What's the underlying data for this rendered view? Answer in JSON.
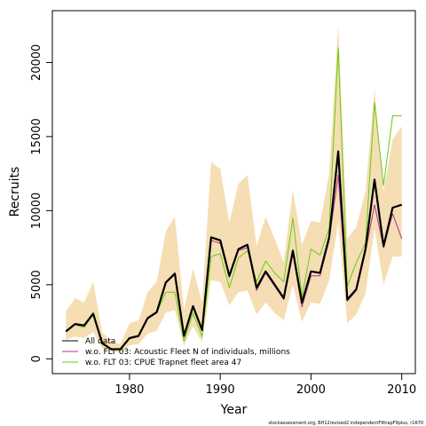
{
  "chart_data": {
    "type": "line",
    "xlabel": "Year",
    "ylabel": "Recruits",
    "xlim": [
      1971.5,
      2011.5
    ],
    "ylim": [
      -1000,
      23500
    ],
    "x_ticks": [
      1980,
      1990,
      2000,
      2010
    ],
    "x_tick_labels": [
      "1980",
      "1990",
      "2000",
      "2010"
    ],
    "y_ticks": [
      0,
      5000,
      10000,
      15000,
      20000
    ],
    "y_tick_labels": [
      "0",
      "5000",
      "10000",
      "15000",
      "20000"
    ],
    "legend_position": "bottom-left",
    "credit": "stockassessment.org, BH12revised2 independentF9trapF9plus, r1670",
    "band_color": "#f5deb3",
    "years": [
      1973,
      1974,
      1975,
      1976,
      1977,
      1978,
      1979,
      1980,
      1981,
      1982,
      1983,
      1984,
      1985,
      1986,
      1987,
      1988,
      1989,
      1990,
      1991,
      1992,
      1993,
      1994,
      1995,
      1996,
      1997,
      1998,
      1999,
      2000,
      2001,
      2002,
      2003,
      2004,
      2005,
      2006,
      2007,
      2008,
      2009,
      2010
    ],
    "band": {
      "lower": [
        1300,
        1500,
        1400,
        1800,
        700,
        500,
        400,
        900,
        1000,
        1700,
        1900,
        3100,
        3300,
        900,
        2200,
        1100,
        5300,
        5200,
        3600,
        4500,
        4600,
        3000,
        3800,
        3100,
        2600,
        5000,
        2500,
        3800,
        3700,
        5300,
        9200,
        2400,
        3000,
        4400,
        8800,
        5000,
        6900,
        6900
      ],
      "upper": [
        3200,
        4100,
        3800,
        5200,
        1800,
        1200,
        1000,
        2400,
        2600,
        4500,
        5200,
        8600,
        9600,
        3300,
        6100,
        3800,
        13300,
        12800,
        9200,
        11800,
        12400,
        7600,
        9600,
        8100,
        6500,
        11400,
        7700,
        9300,
        9200,
        12500,
        22500,
        8100,
        8900,
        11300,
        18200,
        11300,
        14800,
        15700
      ]
    },
    "series": [
      {
        "name": "All data",
        "color": "#000000",
        "width": 2.2,
        "values": [
          1850,
          2350,
          2250,
          3050,
          1050,
          650,
          650,
          1400,
          1550,
          2750,
          3150,
          5150,
          5750,
          1550,
          3550,
          1950,
          8200,
          8000,
          5600,
          7400,
          7700,
          4800,
          5900,
          5000,
          4100,
          7300,
          3800,
          5900,
          5800,
          8200,
          14000,
          4000,
          4700,
          7400,
          12100,
          7600,
          10200,
          10400
        ]
      },
      {
        "name": "w.o. FLT 03: Acoustic Fleet  N of individuals, millions",
        "color": "#b03090",
        "width": 1,
        "values": [
          1850,
          2300,
          2200,
          3000,
          1000,
          650,
          650,
          1350,
          1500,
          2700,
          3100,
          5100,
          5700,
          1500,
          3500,
          1900,
          8000,
          7800,
          5500,
          7300,
          7500,
          4600,
          5800,
          4900,
          4000,
          7100,
          3500,
          5600,
          5600,
          8000,
          12400,
          3900,
          4600,
          7200,
          10400,
          7500,
          9800,
          8100
        ]
      },
      {
        "name": "w.o. FLT 03: CPUE Trapnet fleet area 47",
        "color": "#66cc11",
        "width": 1,
        "values": [
          1800,
          2300,
          2100,
          3000,
          1000,
          600,
          700,
          1400,
          1500,
          2700,
          3100,
          4500,
          4500,
          1200,
          3100,
          1500,
          6900,
          7100,
          4800,
          6800,
          7300,
          5200,
          6600,
          5800,
          5200,
          9500,
          4200,
          7400,
          7000,
          8800,
          21000,
          4900,
          6500,
          7800,
          17300,
          11700,
          16400,
          16400
        ]
      }
    ]
  }
}
